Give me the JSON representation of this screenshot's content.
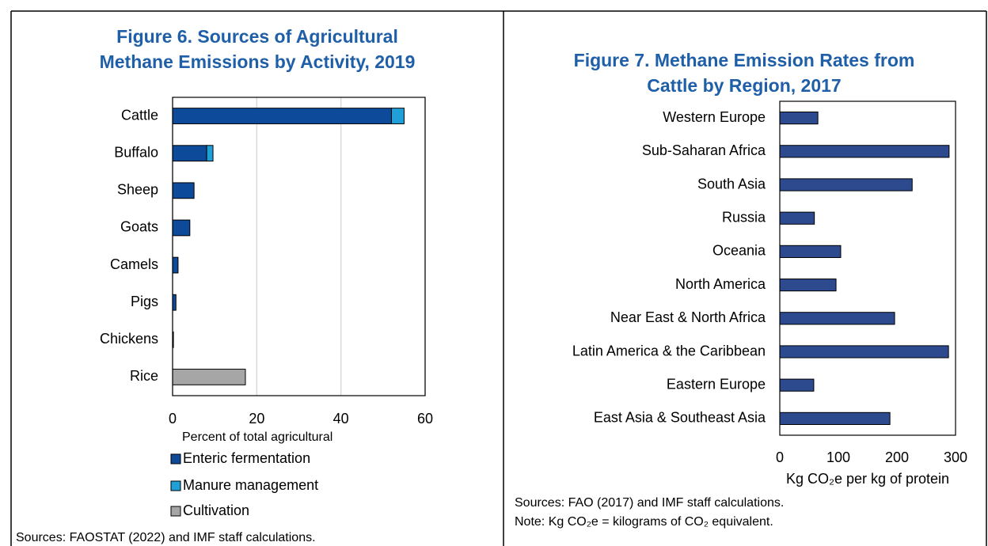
{
  "chart_data": [
    {
      "type": "bar",
      "orientation": "horizontal",
      "stacked": true,
      "title": "Figure 6. Sources of Agricultural Methane Emissions by Activity, 2019",
      "categories": [
        "Cattle",
        "Buffalo",
        "Sheep",
        "Goats",
        "Camels",
        "Pigs",
        "Chickens",
        "Rice"
      ],
      "series": [
        {
          "name": "Enteric fermentation",
          "color": "#0d4a9a",
          "values": [
            52,
            8.1,
            5.1,
            4.1,
            1.3,
            0.8,
            0.2,
            null
          ]
        },
        {
          "name": "Manure management",
          "color": "#1fa0d8",
          "values": [
            3,
            1.5,
            null,
            null,
            null,
            null,
            null,
            null
          ]
        },
        {
          "name": "Cultivation",
          "color": "#a6a6a6",
          "values": [
            null,
            null,
            null,
            null,
            null,
            null,
            null,
            17.3
          ]
        }
      ],
      "xlim": [
        0,
        60
      ],
      "xticks": [
        0,
        20,
        40,
        60
      ],
      "grid": true,
      "xlabel": "Percent of total agricultural",
      "source": "Sources: FAOSTAT (2022) and IMF staff calculations."
    },
    {
      "type": "bar",
      "orientation": "horizontal",
      "title": "Figure 7. Methane Emission Rates from Cattle by Region, 2017",
      "categories": [
        "Western Europe",
        "Sub-Saharan Africa",
        "South Asia",
        "Russia",
        "Oceania",
        "North America",
        "Near East & North Africa",
        "Latin America & the Caribbean",
        "Eastern Europe",
        "East Asia & Southeast Asia"
      ],
      "values": [
        65,
        289,
        226,
        59,
        104,
        96,
        196,
        288,
        58,
        188
      ],
      "color": "#2e4a8f",
      "xlim": [
        0,
        300
      ],
      "xticks": [
        0,
        100,
        200,
        300
      ],
      "grid": false,
      "xlabel": "Kg CO₂e per kg of protein",
      "source": "Sources: FAO (2017) and IMF staff calculations.",
      "note": "Note: Kg CO₂e = kilograms of CO₂ equivalent."
    }
  ]
}
